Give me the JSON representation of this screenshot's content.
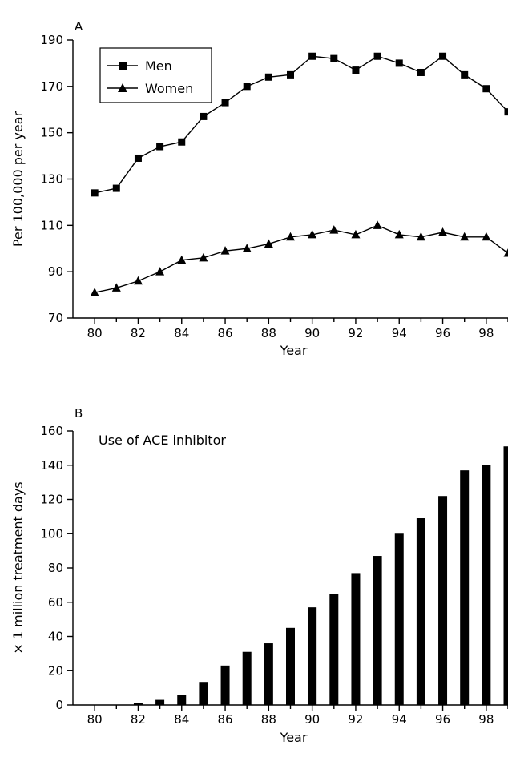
{
  "chart_data": [
    {
      "type": "line",
      "panel_label": "A",
      "title": "",
      "xlabel": "Year",
      "ylabel": "Per 100,000 per year",
      "xlim": [
        79,
        99
      ],
      "ylim": [
        70,
        190
      ],
      "x_ticks": [
        80,
        82,
        84,
        86,
        88,
        90,
        92,
        94,
        96,
        98
      ],
      "y_ticks": [
        70,
        90,
        110,
        130,
        150,
        170,
        190
      ],
      "grid": false,
      "legend": "top-left",
      "x": [
        80,
        81,
        82,
        83,
        84,
        85,
        86,
        87,
        88,
        89,
        90,
        91,
        92,
        93,
        94,
        95,
        96,
        97,
        98,
        99
      ],
      "series": [
        {
          "name": "Men",
          "marker": "square",
          "values": [
            124,
            126,
            139,
            144,
            146,
            157,
            163,
            170,
            174,
            175,
            183,
            182,
            177,
            183,
            180,
            176,
            183,
            175,
            169,
            159
          ]
        },
        {
          "name": "Women",
          "marker": "triangle",
          "values": [
            81,
            83,
            86,
            90,
            95,
            96,
            99,
            100,
            102,
            105,
            106,
            108,
            106,
            110,
            106,
            105,
            107,
            105,
            105,
            98
          ]
        }
      ]
    },
    {
      "type": "bar",
      "panel_label": "B",
      "title": "",
      "annotation": "Use of ACE inhibitor",
      "xlabel": "Year",
      "ylabel": "× 1 million treatment days",
      "xlim": [
        79,
        99
      ],
      "ylim": [
        0,
        160
      ],
      "x_ticks": [
        80,
        82,
        84,
        86,
        88,
        90,
        92,
        94,
        96,
        98
      ],
      "y_ticks": [
        0,
        20,
        40,
        60,
        80,
        100,
        120,
        140,
        160
      ],
      "grid": false,
      "bar_color": "#000000",
      "categories": [
        80,
        81,
        82,
        83,
        84,
        85,
        86,
        87,
        88,
        89,
        90,
        91,
        92,
        93,
        94,
        95,
        96,
        97,
        98,
        99
      ],
      "values": [
        0,
        0,
        1,
        3,
        6,
        13,
        23,
        31,
        36,
        45,
        57,
        65,
        77,
        87,
        100,
        109,
        122,
        137,
        140,
        151
      ]
    }
  ]
}
